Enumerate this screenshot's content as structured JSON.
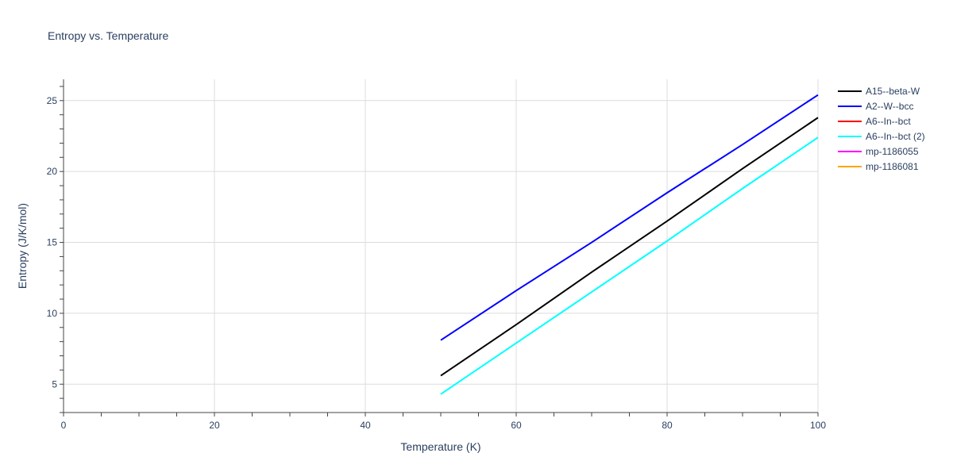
{
  "chart_data": {
    "type": "line",
    "title": "Entropy vs. Temperature",
    "xlabel": "Temperature (K)",
    "ylabel": "Entropy (J/K/mol)",
    "xlim": [
      0,
      100
    ],
    "ylim": [
      3.0,
      26.5
    ],
    "x_ticks": [
      0,
      20,
      40,
      60,
      80,
      100
    ],
    "y_ticks": [
      5,
      10,
      15,
      20,
      25
    ],
    "grid": true,
    "legend_position": "top-right",
    "series": [
      {
        "name": "A15--beta-W",
        "color": "#000000",
        "x": [
          50,
          60,
          70,
          80,
          90,
          100
        ],
        "values": [
          5.6,
          9.2,
          12.9,
          16.5,
          20.2,
          23.8
        ]
      },
      {
        "name": "A2--W--bcc",
        "color": "#0000ff",
        "x": [
          50,
          60,
          70,
          80,
          90,
          100
        ],
        "values": [
          8.1,
          11.6,
          15.0,
          18.5,
          21.9,
          25.4
        ]
      },
      {
        "name": "A6--In--bct",
        "color": "#ff0000",
        "x": [],
        "values": []
      },
      {
        "name": "A6--In--bct (2)",
        "color": "#00ffff",
        "x": [
          50,
          60,
          70,
          80,
          90,
          100
        ],
        "values": [
          4.3,
          7.9,
          11.5,
          15.1,
          18.8,
          22.4
        ]
      },
      {
        "name": "mp-1186055",
        "color": "#ff00ff",
        "x": [],
        "values": []
      },
      {
        "name": "mp-1186081",
        "color": "#ffa500",
        "x": [],
        "values": []
      }
    ]
  }
}
